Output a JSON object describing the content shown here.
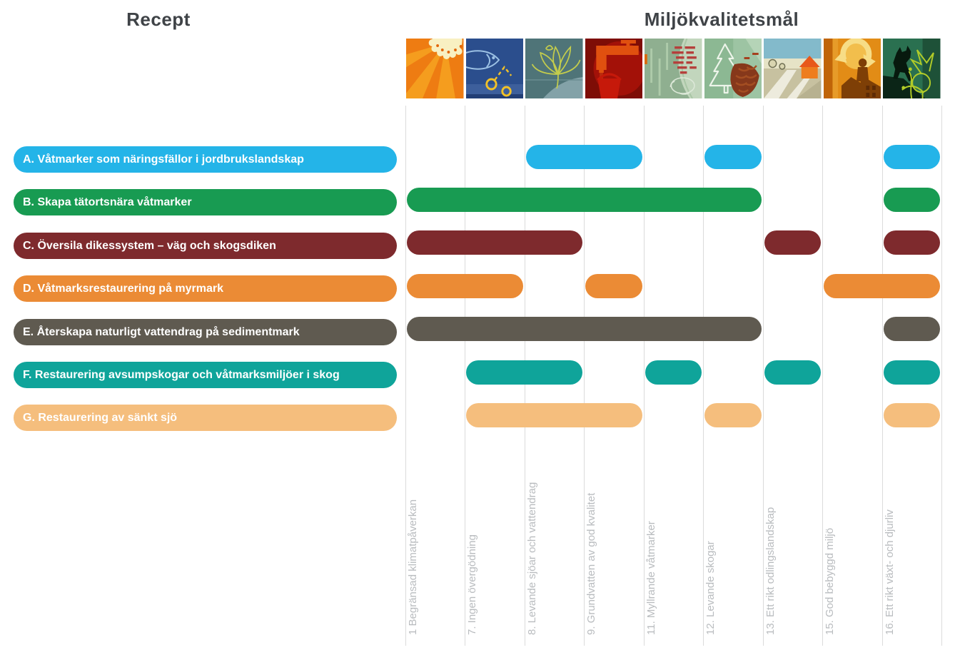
{
  "titles": {
    "left": "Recept",
    "right": "Miljökvalitetsmål"
  },
  "colors": {
    "recipe_a": "#24B4E8",
    "recipe_b": "#189B52",
    "recipe_c": "#7E2A2D",
    "recipe_d": "#EB8B35",
    "recipe_e": "#5F5A50",
    "recipe_f": "#0FA49A",
    "recipe_g": "#F5BE7D",
    "grid_line": "#DBDBDB",
    "column_label_text": "#B9BCBF",
    "title_text": "#3F4347",
    "pill_text": "#FFFFFF"
  },
  "goals": [
    {
      "num": "1",
      "label": "1 Begränsad klimatpåverkan",
      "icon": "sun-climate-icon"
    },
    {
      "num": "7",
      "label": "7. Ingen övergödning",
      "icon": "fish-eutrophication-icon"
    },
    {
      "num": "8",
      "label": "8. Levande sjöar och vattendrag",
      "icon": "waterlily-lakes-icon"
    },
    {
      "num": "9",
      "label": "9. Grundvatten av god kvalitet",
      "icon": "tap-groundwater-icon"
    },
    {
      "num": "11",
      "label": "11. Myllrande våtmarker",
      "icon": "wetland-reeds-icon"
    },
    {
      "num": "12",
      "label": "12. Levande skogar",
      "icon": "forest-pinecone-icon"
    },
    {
      "num": "13",
      "label": "13. Ett rikt odlingslandskap",
      "icon": "farmland-icon"
    },
    {
      "num": "15",
      "label": "15. God bebyggd miljö",
      "icon": "built-environment-icon"
    },
    {
      "num": "16",
      "label": "16. Ett rikt växt- och djurliv",
      "icon": "wildlife-icon"
    }
  ],
  "recipes": [
    {
      "id": "A",
      "label": "A. Våtmarker som näringsfällor i jordbrukslandskap",
      "color": "#24B4E8",
      "goal_nums": [
        "8",
        "9",
        "12",
        "16"
      ]
    },
    {
      "id": "B",
      "label": "B. Skapa tätortsnära våtmarker",
      "color": "#189B52",
      "goal_nums": [
        "1",
        "7",
        "8",
        "9",
        "11",
        "12",
        "16"
      ]
    },
    {
      "id": "C",
      "label": "C. Översila dikessystem – väg och skogsdiken",
      "color": "#7E2A2D",
      "goal_nums": [
        "1",
        "7",
        "8",
        "13",
        "16"
      ]
    },
    {
      "id": "D",
      "label": "D. Våtmarksrestaurering på myrmark",
      "color": "#EB8B35",
      "goal_nums": [
        "1",
        "7",
        "9",
        "15",
        "16"
      ]
    },
    {
      "id": "E",
      "label": "E. Återskapa naturligt vattendrag på sedimentmark",
      "color": "#5F5A50",
      "goal_nums": [
        "1",
        "7",
        "8",
        "9",
        "11",
        "12",
        "16"
      ]
    },
    {
      "id": "F",
      "label": "F. Restaurering avsumpskogar och våtmarksmiljöer i skog",
      "color": "#0FA49A",
      "goal_nums": [
        "7",
        "8",
        "11",
        "13",
        "16"
      ]
    },
    {
      "id": "G",
      "label": "G. Restaurering av sänkt sjö",
      "color": "#F5BE7D",
      "goal_nums": [
        "7",
        "8",
        "9",
        "12",
        "16"
      ]
    }
  ],
  "chart_data": {
    "type": "matrix",
    "rows_title": "Recept",
    "columns_title": "Miljökvalitetsmål",
    "columns": [
      "1 Begränsad klimatpåverkan",
      "7. Ingen övergödning",
      "8. Levande sjöar och vattendrag",
      "9. Grundvatten av god kvalitet",
      "11. Myllrande våtmarker",
      "12. Levande skogar",
      "13. Ett rikt odlingslandskap",
      "15. God bebyggd miljö",
      "16. Ett rikt växt- och djurliv"
    ],
    "rows": [
      {
        "name": "A. Våtmarker som näringsfällor i jordbrukslandskap",
        "values": [
          0,
          0,
          1,
          1,
          0,
          1,
          0,
          0,
          1
        ]
      },
      {
        "name": "B. Skapa tätortsnära våtmarker",
        "values": [
          1,
          1,
          1,
          1,
          1,
          1,
          0,
          0,
          1
        ]
      },
      {
        "name": "C. Översila dikessystem – väg och skogsdiken",
        "values": [
          1,
          1,
          1,
          0,
          0,
          0,
          1,
          0,
          1
        ]
      },
      {
        "name": "D. Våtmarksrestaurering på myrmark",
        "values": [
          1,
          1,
          0,
          1,
          0,
          0,
          0,
          1,
          1
        ]
      },
      {
        "name": "E. Återskapa naturligt vattendrag på sedimentmark",
        "values": [
          1,
          1,
          1,
          1,
          1,
          1,
          0,
          0,
          1
        ]
      },
      {
        "name": "F. Restaurering avsumpskogar och våtmarksmiljöer i skog",
        "values": [
          0,
          1,
          1,
          0,
          1,
          0,
          1,
          0,
          1
        ]
      },
      {
        "name": "G. Restaurering av sänkt sjö",
        "values": [
          0,
          1,
          1,
          1,
          0,
          1,
          0,
          0,
          1
        ]
      }
    ],
    "legend_position": "none",
    "grid": true
  }
}
